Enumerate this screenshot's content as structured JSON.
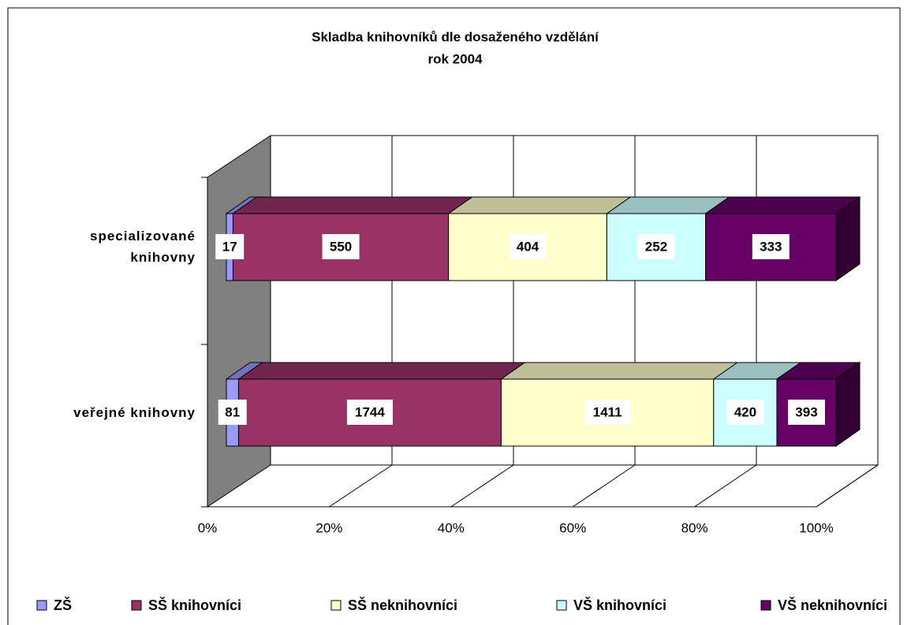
{
  "chart_data": {
    "type": "stacked_bar_100_3d",
    "title": "Skladba knihovníků dle dosaženého vzdělání",
    "subtitle": "rok 2004",
    "categories": [
      "veřejné knihovny",
      "specializované knihovny"
    ],
    "series": [
      {
        "name": "ZŠ",
        "color": "#9999ff",
        "values": [
          81,
          17
        ]
      },
      {
        "name": "SŠ knihovníci",
        "color": "#993366",
        "values": [
          1744,
          550
        ]
      },
      {
        "name": "SŠ neknihovníci",
        "color": "#ffffcc",
        "values": [
          1411,
          404
        ]
      },
      {
        "name": "VŠ knihovníci",
        "color": "#ccffff",
        "values": [
          420,
          252
        ]
      },
      {
        "name": "VŠ neknihovníci",
        "color": "#660066",
        "values": [
          393,
          333
        ]
      }
    ],
    "xlim": [
      0,
      100
    ],
    "xticks": [
      {
        "value": 0,
        "label": "0%"
      },
      {
        "value": 20,
        "label": "20%"
      },
      {
        "value": 40,
        "label": "40%"
      },
      {
        "value": 60,
        "label": "60%"
      },
      {
        "value": 80,
        "label": "80%"
      },
      {
        "value": 100,
        "label": "100%"
      }
    ],
    "grid": true,
    "legend": "bottom"
  }
}
